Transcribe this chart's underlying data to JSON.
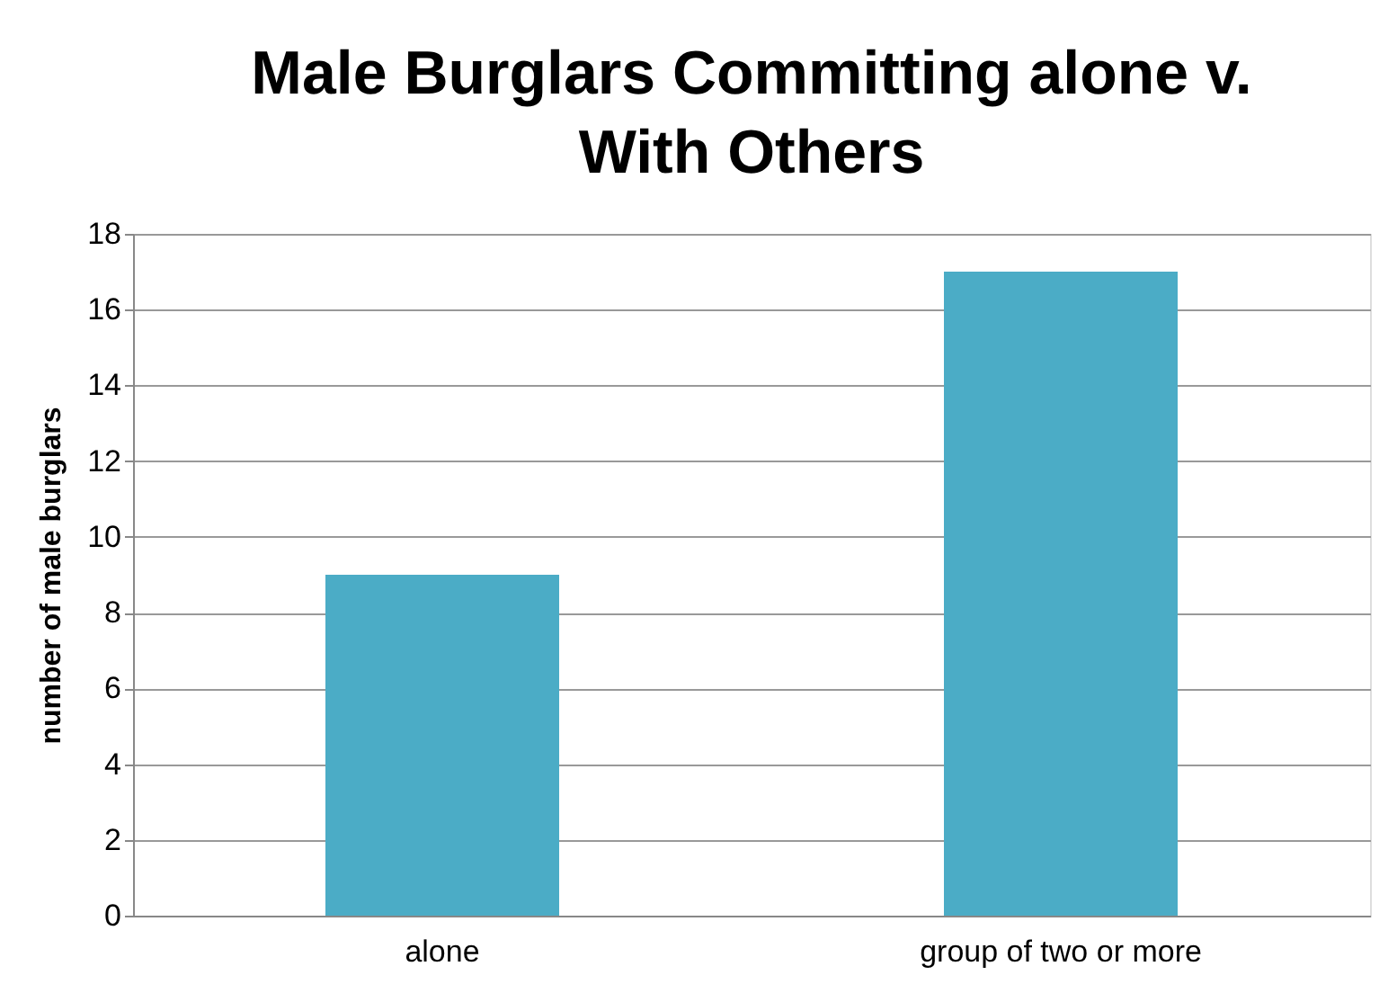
{
  "chart_data": {
    "type": "bar",
    "title": "Male Burglars Committing alone v. With Others",
    "ylabel": "number of male burglars",
    "categories": [
      "alone",
      "group of two or more"
    ],
    "values": [
      9,
      17
    ],
    "color": "#4bacc6",
    "ylim": [
      0,
      18
    ],
    "yticks": [
      0,
      2,
      4,
      6,
      8,
      10,
      12,
      14,
      16,
      18
    ],
    "grid": "y"
  }
}
